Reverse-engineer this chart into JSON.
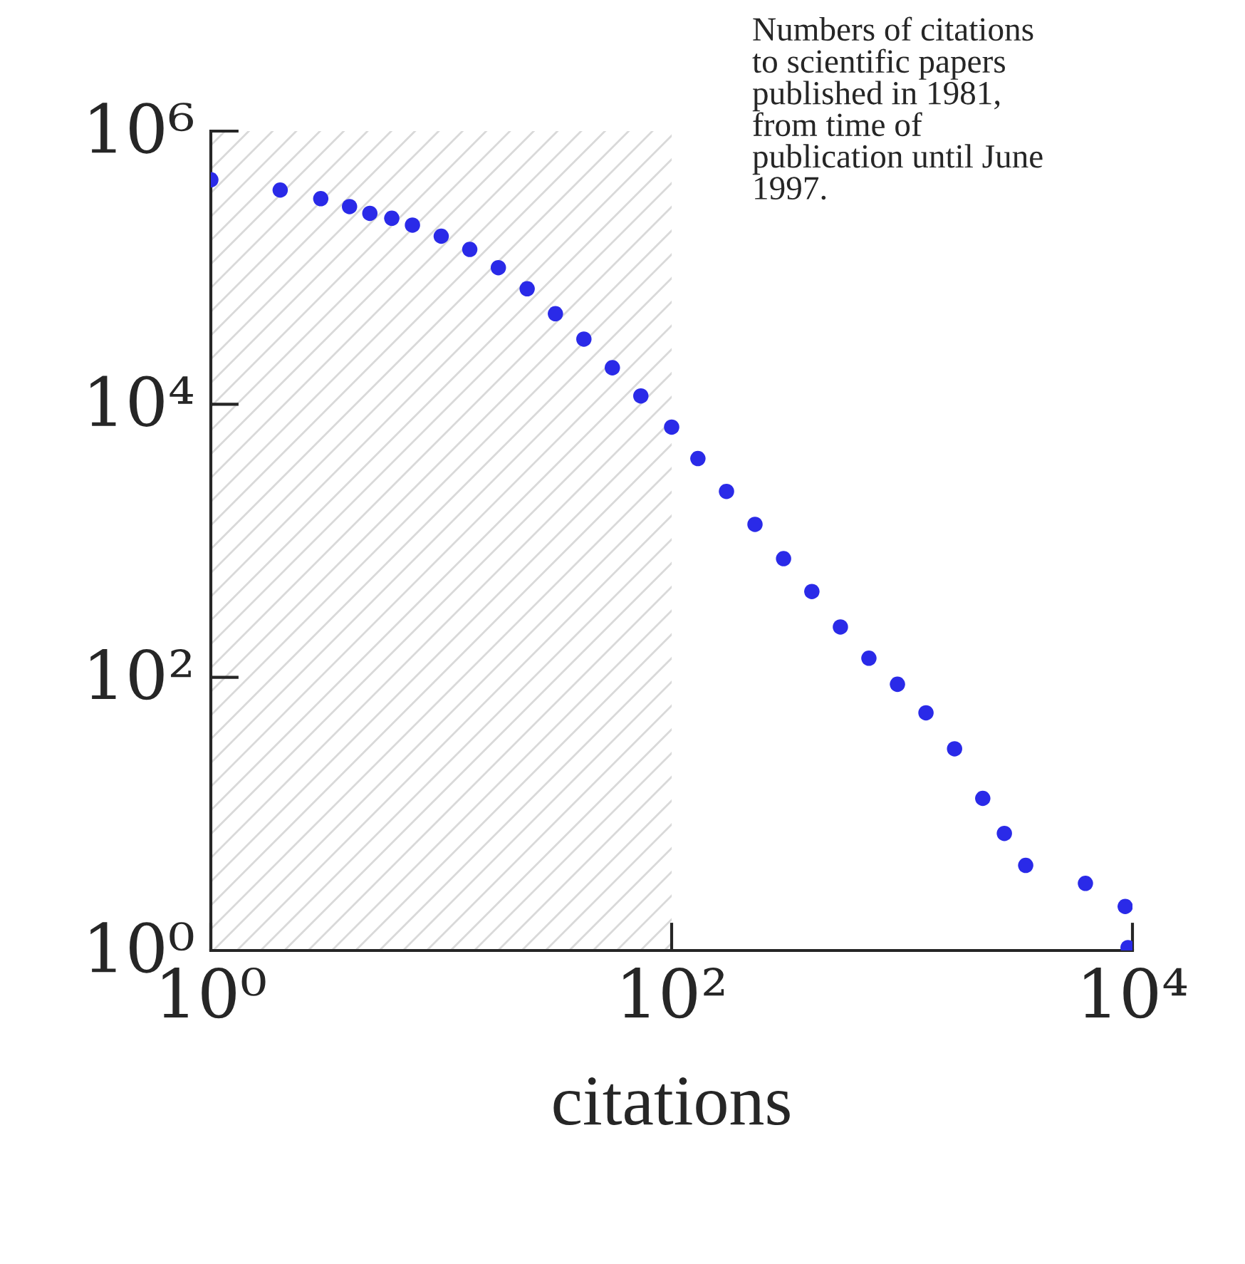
{
  "chart_data": {
    "type": "scatter",
    "xlabel": "citations",
    "annotations": [
      "Numbers of citations\nto scientific papers\npublished in 1981,\nfrom time of\npublication until June\n1997."
    ],
    "series": [
      {
        "color": "#2a2ae8",
        "x": [
          1,
          2.0,
          3.0,
          4.0,
          4.9,
          6.1,
          7.5,
          10,
          13.3,
          17.7,
          23.6,
          31.3,
          41.6,
          55.3,
          73.5,
          100,
          130,
          173,
          230,
          306,
          406,
          540,
          718,
          955,
          1270,
          1690,
          2240,
          2780,
          3440,
          6250,
          9300,
          9570
        ],
        "values": [
          440000,
          370000,
          320000,
          280000,
          250000,
          230000,
          205000,
          170000,
          136000,
          100000,
          70000,
          46000,
          30000,
          18500,
          11500,
          6800,
          4000,
          2300,
          1320,
          740,
          425,
          234,
          138,
          89,
          55,
          30,
          13,
          7.2,
          4.2,
          3.1,
          2.1,
          1.05
        ]
      }
    ],
    "log": "xy",
    "xlim": [
      1,
      10000
    ],
    "ylim": [
      1,
      1000000
    ],
    "xticks": [
      {
        "value": 1,
        "label": "10⁰"
      },
      {
        "value": 100,
        "label": "10²"
      },
      {
        "value": 10000,
        "label": "10⁴"
      }
    ],
    "yticks": [
      {
        "value": 1,
        "label": "10⁰"
      },
      {
        "value": 100,
        "label": "10²"
      },
      {
        "value": 10000,
        "label": "10⁴"
      },
      {
        "value": 1000000,
        "label": "10⁶"
      }
    ],
    "bands": [
      {
        "axis": "x",
        "from": 1,
        "to": 100,
        "color": "#d9d9d9"
      }
    ],
    "marker": "circle",
    "grid": false,
    "legend": false
  }
}
